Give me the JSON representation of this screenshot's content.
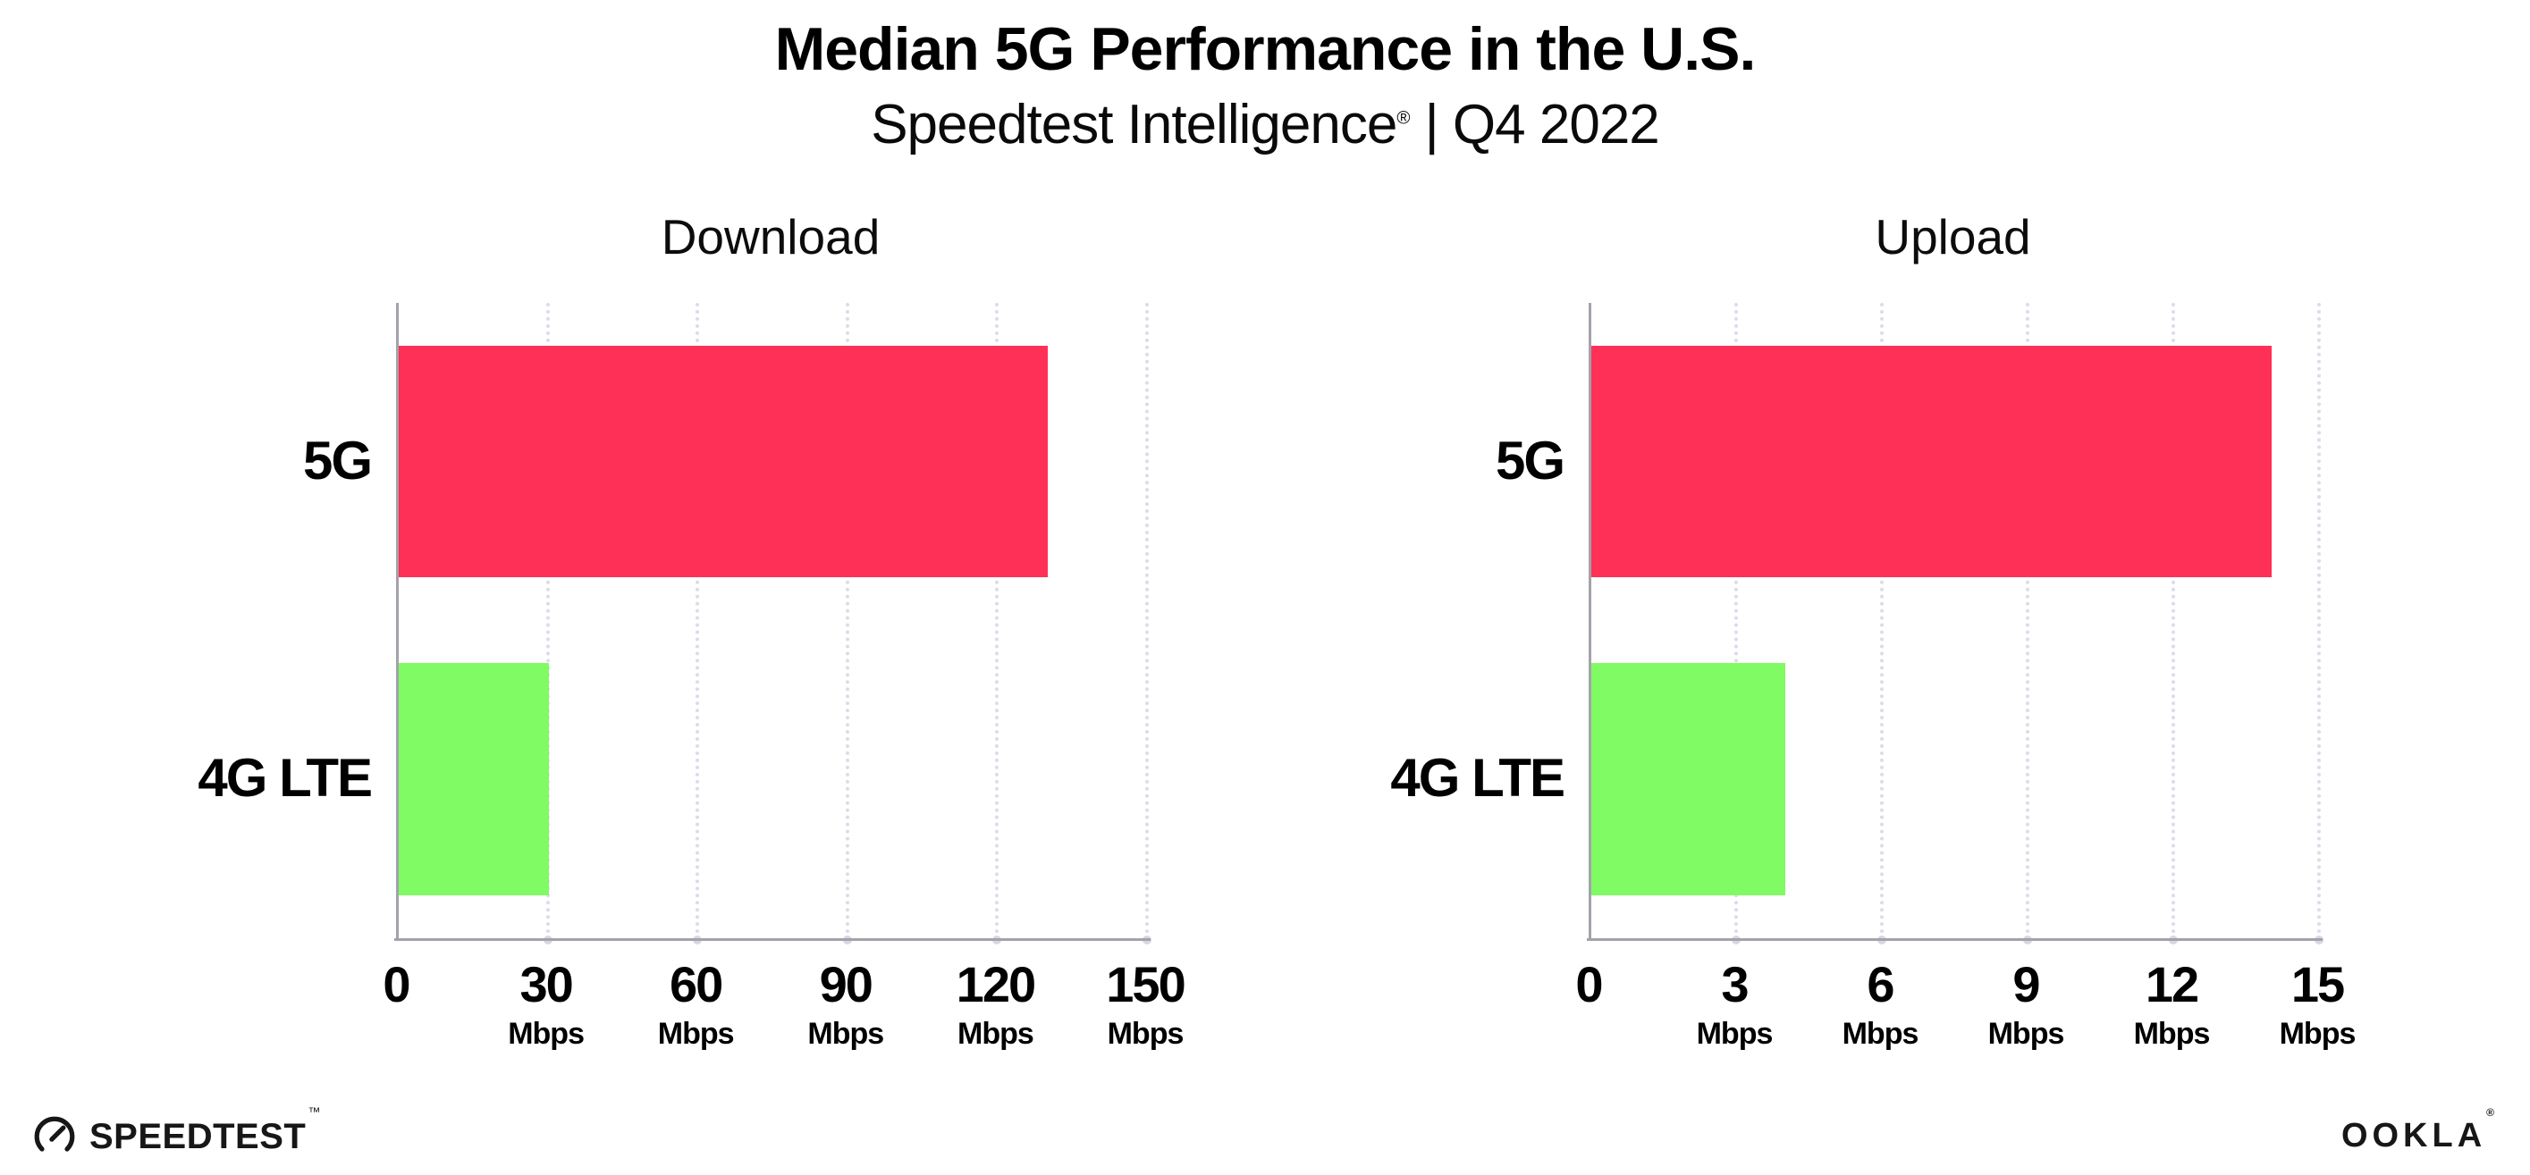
{
  "page": {
    "title": "Median 5G Performance in the U.S.",
    "subtitle_brand": "Speedtest Intelligence",
    "subtitle_reg": "®",
    "subtitle_rest": " | Q4 2022"
  },
  "colors": {
    "bar_5g": "#FF3057",
    "bar_4g_lte": "#80FB63",
    "axis_line": "#A2A3AB",
    "gridline": "#DCDCE8",
    "text": "#000000"
  },
  "chart_data": [
    {
      "type": "bar",
      "orientation": "horizontal",
      "title": "Download",
      "categories": [
        "5G",
        "4G LTE"
      ],
      "values": [
        130,
        30
      ],
      "unit": "Mbps",
      "xlim": [
        0,
        150
      ],
      "xticks": [
        0,
        30,
        60,
        90,
        120,
        150
      ],
      "grid": "dotted-vertical",
      "legend": "none"
    },
    {
      "type": "bar",
      "orientation": "horizontal",
      "title": "Upload",
      "categories": [
        "5G",
        "4G LTE"
      ],
      "values": [
        14,
        4
      ],
      "unit": "Mbps",
      "xlim": [
        0,
        15
      ],
      "xticks": [
        0,
        3,
        6,
        9,
        12,
        15
      ],
      "grid": "dotted-vertical",
      "legend": "none"
    }
  ],
  "footer": {
    "speedtest_label": "SPEEDTEST",
    "speedtest_mark": "™",
    "ookla_label": "OOKLA",
    "ookla_mark": "®"
  }
}
